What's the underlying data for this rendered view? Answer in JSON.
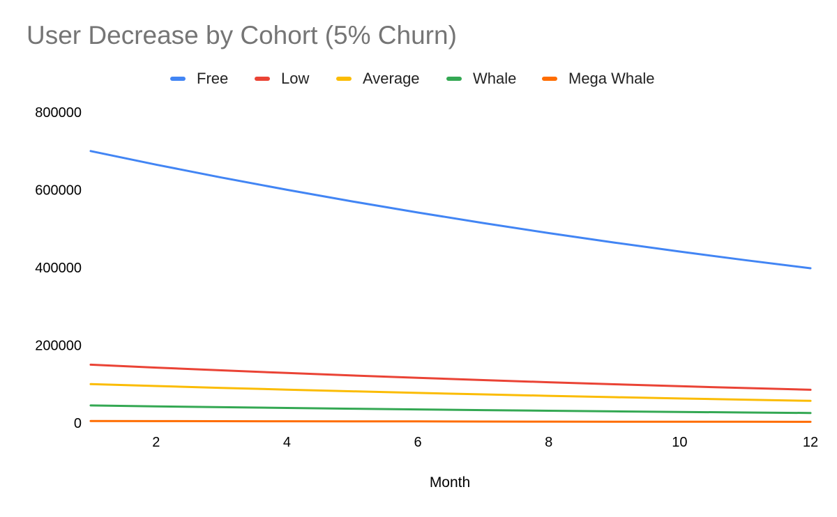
{
  "chart_data": {
    "type": "line",
    "title": "User Decrease by Cohort (5% Churn)",
    "xlabel": "Month",
    "ylabel": "",
    "x": [
      1,
      2,
      3,
      4,
      5,
      6,
      7,
      8,
      9,
      10,
      11,
      12
    ],
    "xlim": [
      1,
      12
    ],
    "ylim": [
      0,
      800000
    ],
    "x_ticks": [
      2,
      4,
      6,
      8,
      10,
      12
    ],
    "y_ticks": [
      0,
      200000,
      400000,
      600000,
      800000
    ],
    "x_tick_labels": [
      "2",
      "4",
      "6",
      "8",
      "10",
      "12"
    ],
    "y_tick_labels": [
      "0",
      "200000",
      "400000",
      "600000",
      "800000"
    ],
    "grid": false,
    "legend_position": "top",
    "series": [
      {
        "name": "Free",
        "color": "#4285f4",
        "values": [
          700000,
          665000,
          631750,
          600163,
          570154,
          541647,
          514564,
          488836,
          464394,
          441175,
          419116,
          398160
        ]
      },
      {
        "name": "Low",
        "color": "#ea4335",
        "values": [
          150000,
          142500,
          135375,
          128606,
          122176,
          116067,
          110264,
          104750,
          99513,
          94537,
          89810,
          85320
        ]
      },
      {
        "name": "Average",
        "color": "#fbbc04",
        "values": [
          100000,
          95000,
          90250,
          85738,
          81451,
          77378,
          73509,
          69834,
          66342,
          63025,
          59874,
          56880
        ]
      },
      {
        "name": "Whale",
        "color": "#34a853",
        "values": [
          45000,
          42750,
          40613,
          38582,
          36653,
          34820,
          33079,
          31425,
          29854,
          28361,
          26943,
          25596
        ]
      },
      {
        "name": "Mega Whale",
        "color": "#ff6d01",
        "values": [
          5000,
          4750,
          4513,
          4287,
          4073,
          3869,
          3675,
          3492,
          3317,
          3151,
          2994,
          2844
        ]
      }
    ]
  }
}
